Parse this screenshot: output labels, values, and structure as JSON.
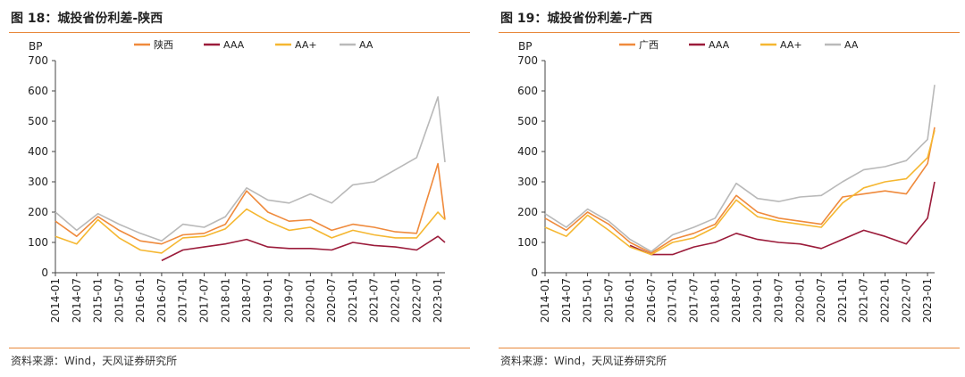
{
  "colors": {
    "province": "#ef8a3c",
    "AAA": "#9b1b3a",
    "AA+": "#f5b731",
    "AA": "#b9b9b9",
    "accent": "#e8883a"
  },
  "chart_data": [
    {
      "type": "line",
      "title": "图 18：城投省份利差-陕西",
      "source": "资料来源：Wind，天风证券研究所",
      "ylabel": "BP",
      "ylim": [
        0,
        700
      ],
      "yticks": [
        "0",
        "100",
        "200",
        "300",
        "400",
        "500",
        "600",
        "700"
      ],
      "xticks": [
        "2014-01",
        "2014-07",
        "2015-01",
        "2015-07",
        "2016-01",
        "2016-07",
        "2017-01",
        "2017-07",
        "2018-01",
        "2018-07",
        "2019-01",
        "2019-07",
        "2020-01",
        "2020-07",
        "2021-01",
        "2021-07",
        "2022-01",
        "2022-07",
        "2023-01"
      ],
      "x": [
        "2014-01",
        "2014-07",
        "2015-01",
        "2015-07",
        "2016-01",
        "2016-07",
        "2017-01",
        "2017-07",
        "2018-01",
        "2018-07",
        "2019-01",
        "2019-07",
        "2020-01",
        "2020-07",
        "2021-01",
        "2021-07",
        "2022-01",
        "2022-07",
        "2023-01",
        "2023-03"
      ],
      "legend_position": "top",
      "series": [
        {
          "name": "陕西",
          "values": [
            170,
            120,
            185,
            140,
            105,
            95,
            125,
            130,
            160,
            270,
            200,
            170,
            175,
            140,
            160,
            150,
            135,
            130,
            360,
            175
          ]
        },
        {
          "name": "AAA",
          "values": [
            null,
            null,
            null,
            null,
            null,
            40,
            75,
            85,
            95,
            110,
            85,
            80,
            80,
            75,
            100,
            90,
            85,
            75,
            120,
            100
          ]
        },
        {
          "name": "AA+",
          "values": [
            120,
            95,
            175,
            115,
            75,
            65,
            115,
            120,
            145,
            210,
            170,
            140,
            150,
            115,
            140,
            125,
            115,
            115,
            200,
            175
          ]
        },
        {
          "name": "AA",
          "values": [
            200,
            140,
            195,
            160,
            130,
            105,
            160,
            150,
            185,
            280,
            240,
            230,
            260,
            230,
            290,
            300,
            340,
            380,
            580,
            365
          ]
        }
      ]
    },
    {
      "type": "line",
      "title": "图 19：城投省份利差-广西",
      "source": "资料来源：Wind，天风证券研究所",
      "ylabel": "BP",
      "ylim": [
        0,
        700
      ],
      "yticks": [
        "0",
        "100",
        "200",
        "300",
        "400",
        "500",
        "600",
        "700"
      ],
      "xticks": [
        "2014-01",
        "2014-07",
        "2015-01",
        "2015-07",
        "2016-01",
        "2016-07",
        "2017-01",
        "2017-07",
        "2018-01",
        "2018-07",
        "2019-01",
        "2019-07",
        "2020-01",
        "2020-07",
        "2021-01",
        "2021-07",
        "2022-01",
        "2022-07",
        "2023-01"
      ],
      "x": [
        "2014-01",
        "2014-07",
        "2015-01",
        "2015-07",
        "2016-01",
        "2016-07",
        "2017-01",
        "2017-07",
        "2018-01",
        "2018-07",
        "2019-01",
        "2019-07",
        "2020-01",
        "2020-07",
        "2021-01",
        "2021-07",
        "2022-01",
        "2022-07",
        "2023-01",
        "2023-03"
      ],
      "legend_position": "top",
      "series": [
        {
          "name": "广西",
          "values": [
            180,
            140,
            200,
            160,
            100,
            65,
            110,
            130,
            160,
            255,
            200,
            180,
            170,
            160,
            250,
            260,
            270,
            260,
            360,
            480
          ]
        },
        {
          "name": "AAA",
          "values": [
            null,
            null,
            null,
            null,
            90,
            60,
            60,
            85,
            100,
            130,
            110,
            100,
            95,
            80,
            110,
            140,
            120,
            95,
            180,
            300
          ]
        },
        {
          "name": "AA+",
          "values": [
            150,
            120,
            190,
            140,
            85,
            60,
            100,
            115,
            150,
            240,
            185,
            170,
            160,
            150,
            230,
            280,
            300,
            310,
            380,
            470
          ]
        },
        {
          "name": "AA",
          "values": [
            195,
            150,
            210,
            170,
            110,
            70,
            125,
            150,
            180,
            295,
            245,
            235,
            250,
            255,
            300,
            340,
            350,
            370,
            440,
            620
          ]
        }
      ]
    }
  ]
}
